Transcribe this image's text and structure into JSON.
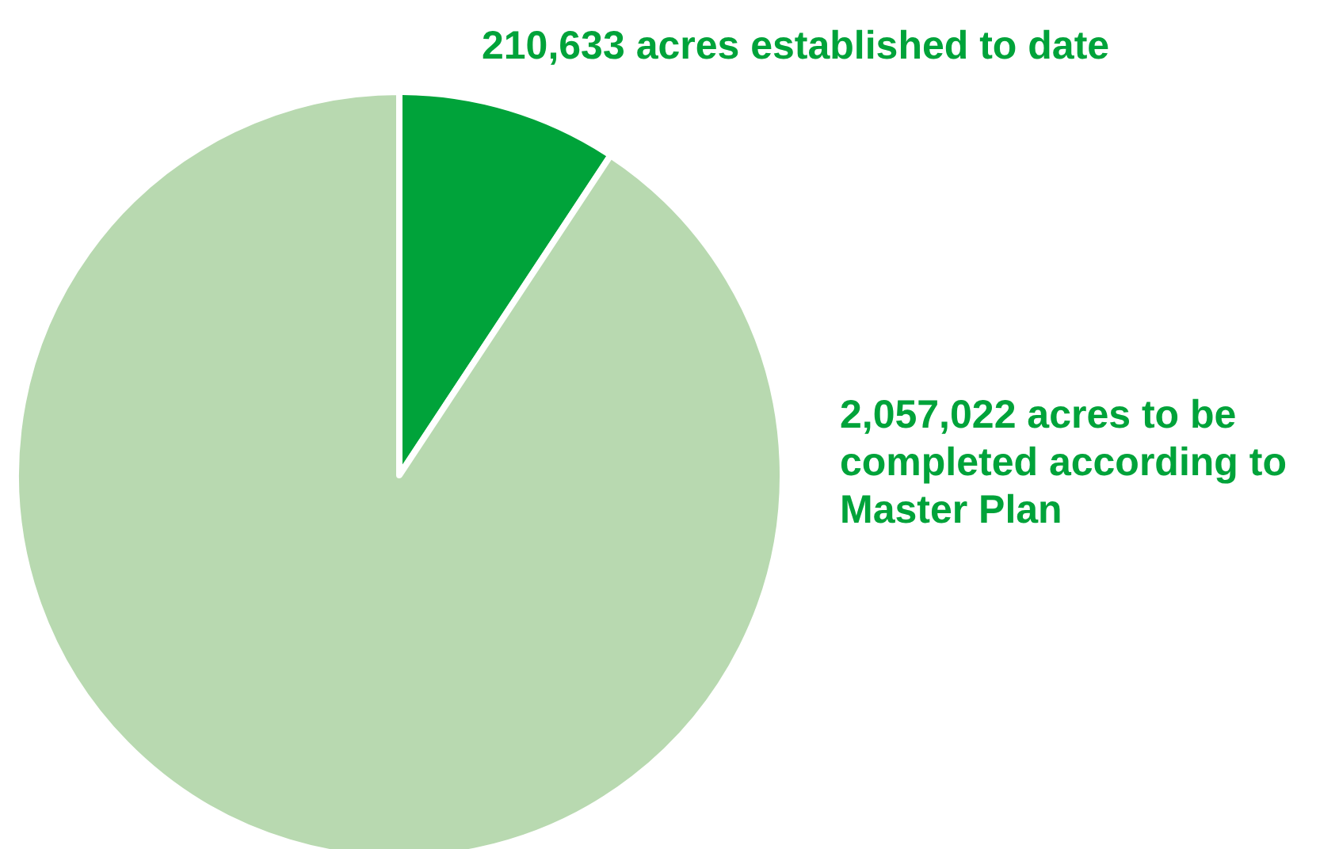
{
  "chart_data": {
    "type": "pie",
    "categories": [
      "210,633 acres established to date",
      "2,057,022 acres to be completed according to Master Plan"
    ],
    "values": [
      210633,
      2057022
    ],
    "colors": [
      "#00a33a",
      "#b8d9b0"
    ]
  }
}
